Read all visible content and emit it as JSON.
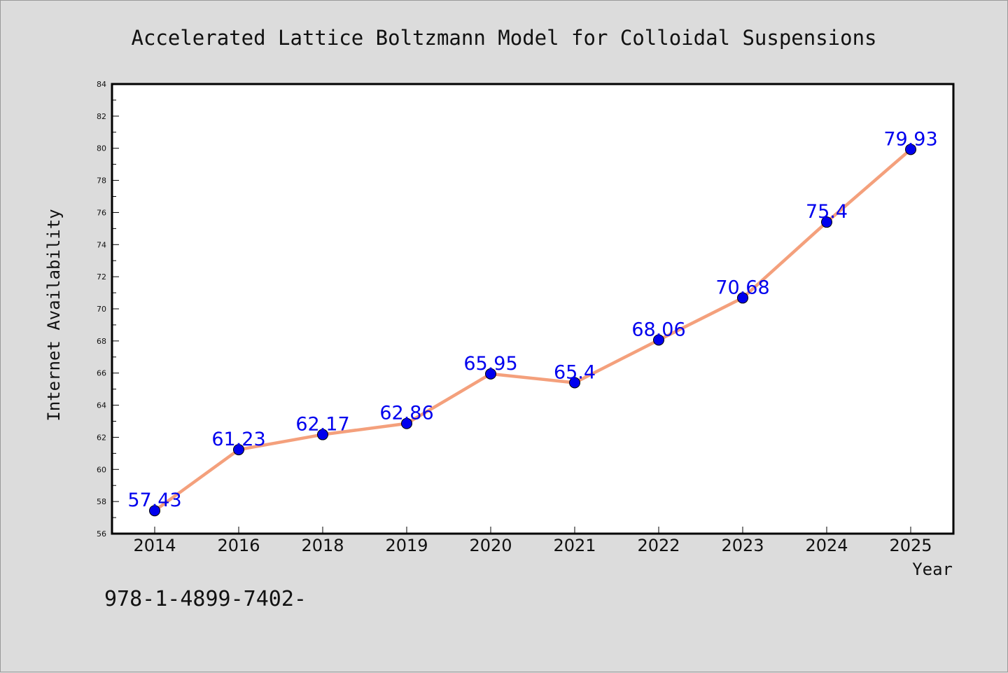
{
  "chart_data": {
    "type": "line",
    "title": "Accelerated Lattice Boltzmann Model for Colloidal Suspensions",
    "xlabel": "Year",
    "ylabel": "Internet Availability",
    "categories": [
      "2014",
      "2016",
      "2018",
      "2019",
      "2020",
      "2021",
      "2022",
      "2023",
      "2024",
      "2025"
    ],
    "values": [
      57.43,
      61.23,
      62.17,
      62.86,
      65.95,
      65.4,
      68.06,
      70.68,
      75.4,
      79.93
    ],
    "data_labels": [
      "57.43",
      "61.23",
      "62.17",
      "62.86",
      "65.95",
      "65.4",
      "68.06",
      "70.68",
      "75.4",
      "79.93"
    ],
    "ylim": [
      56,
      84
    ],
    "yticks": [
      56,
      58,
      60,
      62,
      64,
      66,
      68,
      70,
      72,
      74,
      76,
      78,
      80,
      82,
      84
    ],
    "grid": false,
    "legend": "none",
    "colors": {
      "line": "#f4a07c",
      "marker": "#0000ee",
      "label": "#0000ee",
      "background": "#dcdcdc",
      "plot_area": "#ffffff"
    }
  },
  "footer": {
    "text": "978-1-4899-7402-"
  }
}
